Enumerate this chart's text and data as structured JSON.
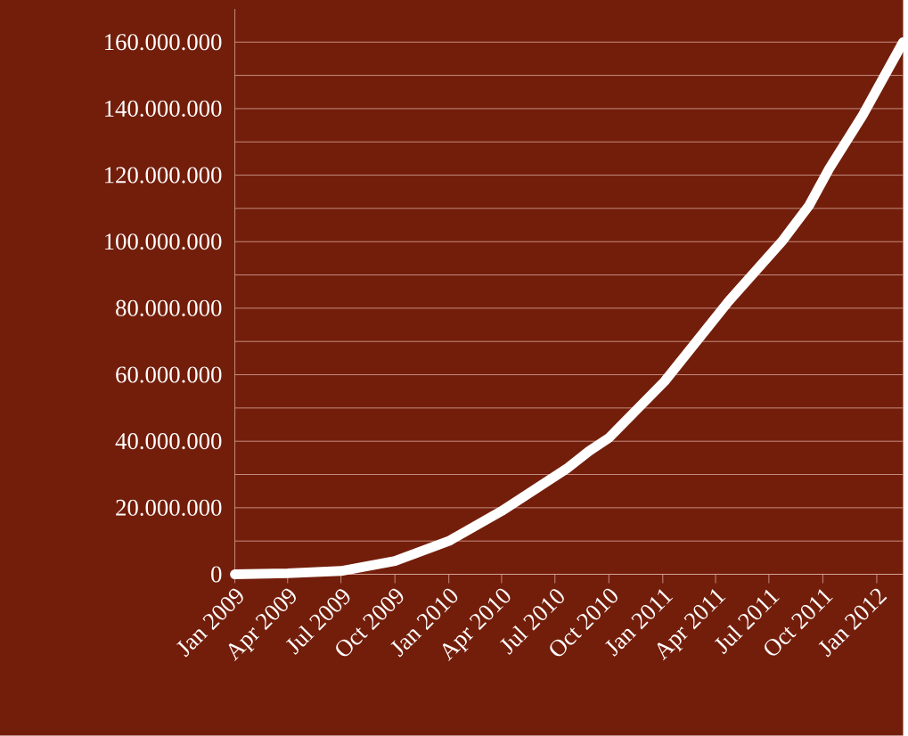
{
  "chart_data": {
    "type": "line",
    "x": [
      "2009-01-01",
      "2009-04-01",
      "2009-07-01",
      "2009-10-01",
      "2010-01-01",
      "2010-04-01",
      "2010-07-23",
      "2010-08-28",
      "2010-10-01",
      "2011-01-04",
      "2011-04-23",
      "2011-07-23",
      "2011-09-08",
      "2011-10-12",
      "2011-12-08",
      "2012-02-15"
    ],
    "values": [
      0,
      300000,
      1000000,
      4000000,
      10000000,
      19000000,
      32000000,
      37000000,
      41000000,
      58000000,
      82000000,
      100000000,
      111000000,
      122000000,
      138000000,
      160000000
    ],
    "color": "#ffffff",
    "xlim": [
      "2009-01-01",
      "2012-02-15"
    ],
    "xticks": [
      {
        "value": "2009-01-01",
        "label": "Jan 2009"
      },
      {
        "value": "2009-04-01",
        "label": "Apr 2009"
      },
      {
        "value": "2009-07-01",
        "label": "Jul 2009"
      },
      {
        "value": "2009-10-01",
        "label": "Oct 2009"
      },
      {
        "value": "2010-01-01",
        "label": "Jan 2010"
      },
      {
        "value": "2010-04-01",
        "label": "Apr 2010"
      },
      {
        "value": "2010-07-01",
        "label": "Jul 2010"
      },
      {
        "value": "2010-10-01",
        "label": "Oct 2010"
      },
      {
        "value": "2011-01-01",
        "label": "Jan 2011"
      },
      {
        "value": "2011-04-01",
        "label": "Apr 2011"
      },
      {
        "value": "2011-07-01",
        "label": "Jul 2011"
      },
      {
        "value": "2011-10-01",
        "label": "Oct 2011"
      },
      {
        "value": "2012-01-01",
        "label": "Jan 2012"
      }
    ],
    "ylim": [
      0,
      170000000
    ],
    "yticks": [
      {
        "value": 0,
        "label": "0"
      },
      {
        "value": 10000000,
        "label": null
      },
      {
        "value": 20000000,
        "label": "20.000.000"
      },
      {
        "value": 30000000,
        "label": null
      },
      {
        "value": 40000000,
        "label": "40.000.000"
      },
      {
        "value": 50000000,
        "label": null
      },
      {
        "value": 60000000,
        "label": "60.000.000"
      },
      {
        "value": 70000000,
        "label": null
      },
      {
        "value": 80000000,
        "label": "80.000.000"
      },
      {
        "value": 90000000,
        "label": null
      },
      {
        "value": 100000000,
        "label": "100.000.000"
      },
      {
        "value": 110000000,
        "label": null
      },
      {
        "value": 120000000,
        "label": "120.000.000"
      },
      {
        "value": 130000000,
        "label": null
      },
      {
        "value": 140000000,
        "label": "140.000.000"
      },
      {
        "value": 150000000,
        "label": null
      },
      {
        "value": 160000000,
        "label": "160.000.000"
      }
    ],
    "grid": "y",
    "marker": "none",
    "line_style": "solid"
  }
}
